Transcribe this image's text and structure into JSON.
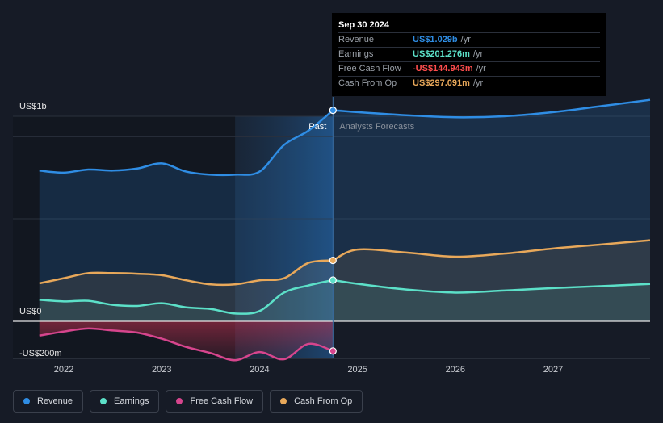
{
  "colors": {
    "background": "#161b26",
    "revenue": "#2f8de4",
    "earnings": "#5ce0c8",
    "free_cash_flow": "#d6458d",
    "cash_from_op": "#e8a85a",
    "past_highlight": "#1c3a5a"
  },
  "tooltip": {
    "date": "Sep 30 2024",
    "rows": [
      {
        "label": "Revenue",
        "value": "US$1.029b",
        "unit": "/yr",
        "color": "#2f8de4"
      },
      {
        "label": "Earnings",
        "value": "US$201.276m",
        "unit": "/yr",
        "color": "#5ce0c8"
      },
      {
        "label": "Free Cash Flow",
        "value": "-US$144.943m",
        "unit": "/yr",
        "color": "#ff4d4d"
      },
      {
        "label": "Cash From Op",
        "value": "US$297.091m",
        "unit": "/yr",
        "color": "#e8a85a"
      }
    ]
  },
  "past_label": "Past",
  "forecast_label": "Analysts Forecasts",
  "legend": [
    {
      "label": "Revenue",
      "color": "#2f8de4"
    },
    {
      "label": "Earnings",
      "color": "#5ce0c8"
    },
    {
      "label": "Free Cash Flow",
      "color": "#d6458d"
    },
    {
      "label": "Cash From Op",
      "color": "#e8a85a"
    }
  ],
  "chart_data": {
    "type": "area",
    "x_ticks": [
      "2022",
      "2023",
      "2024",
      "2025",
      "2026",
      "2027"
    ],
    "x_tick_values": [
      2022.0,
      2023.0,
      2024.0,
      2025.0,
      2026.0,
      2027.0
    ],
    "xlim": [
      2021.48,
      2027.99
    ],
    "y_tick_labels": [
      {
        "label": "US$1b",
        "value": 1000
      },
      {
        "label": "US$0",
        "value": 0
      },
      {
        "label": "-US$200m",
        "value": -200
      }
    ],
    "ylim": [
      -180,
      1000
    ],
    "highlight_range": [
      2023.75,
      2024.75
    ],
    "divider_x": 2024.75,
    "series": [
      {
        "name": "Revenue",
        "key": "revenue",
        "x": [
          2021.75,
          2022.0,
          2022.25,
          2022.5,
          2022.75,
          2023.0,
          2023.25,
          2023.5,
          2023.75,
          2024.0,
          2024.25,
          2024.5,
          2024.75
        ],
        "y": [
          735,
          725,
          740,
          735,
          745,
          770,
          730,
          715,
          715,
          730,
          860,
          930,
          1029
        ],
        "forecast_x": [
          2024.75,
          2025.0,
          2025.5,
          2026.0,
          2026.5,
          2027.0,
          2027.5,
          2028.0
        ],
        "forecast_y": [
          1029,
          1020,
          1005,
          995,
          1000,
          1020,
          1050,
          1080
        ]
      },
      {
        "name": "Earnings",
        "key": "earnings",
        "x": [
          2021.75,
          2022.0,
          2022.25,
          2022.5,
          2022.75,
          2023.0,
          2023.25,
          2023.5,
          2023.75,
          2024.0,
          2024.25,
          2024.5,
          2024.75
        ],
        "y": [
          105,
          97,
          100,
          80,
          75,
          88,
          68,
          60,
          38,
          50,
          140,
          175,
          201
        ],
        "forecast_x": [
          2024.75,
          2025.0,
          2025.5,
          2026.0,
          2026.5,
          2027.0,
          2027.5,
          2028.0
        ],
        "forecast_y": [
          201,
          183,
          155,
          140,
          150,
          162,
          172,
          182
        ]
      },
      {
        "name": "Free Cash Flow",
        "key": "free_cash_flow",
        "x": [
          2021.75,
          2022.0,
          2022.25,
          2022.5,
          2022.75,
          2023.0,
          2023.25,
          2023.5,
          2023.75,
          2024.0,
          2024.25,
          2024.5,
          2024.75
        ],
        "y": [
          -70,
          -50,
          -35,
          -45,
          -55,
          -85,
          -125,
          -155,
          -190,
          -150,
          -185,
          -110,
          -145
        ]
      },
      {
        "name": "Cash From Op",
        "key": "cash_from_op",
        "x": [
          2021.75,
          2022.0,
          2022.25,
          2022.5,
          2022.75,
          2023.0,
          2023.25,
          2023.5,
          2023.75,
          2024.0,
          2024.25,
          2024.5,
          2024.75
        ],
        "y": [
          185,
          210,
          235,
          235,
          232,
          225,
          200,
          180,
          180,
          200,
          210,
          285,
          297
        ],
        "forecast_x": [
          2024.75,
          2025.0,
          2025.5,
          2026.0,
          2026.5,
          2027.0,
          2027.5,
          2028.0
        ],
        "forecast_y": [
          297,
          350,
          335,
          315,
          330,
          355,
          375,
          395
        ]
      }
    ]
  }
}
